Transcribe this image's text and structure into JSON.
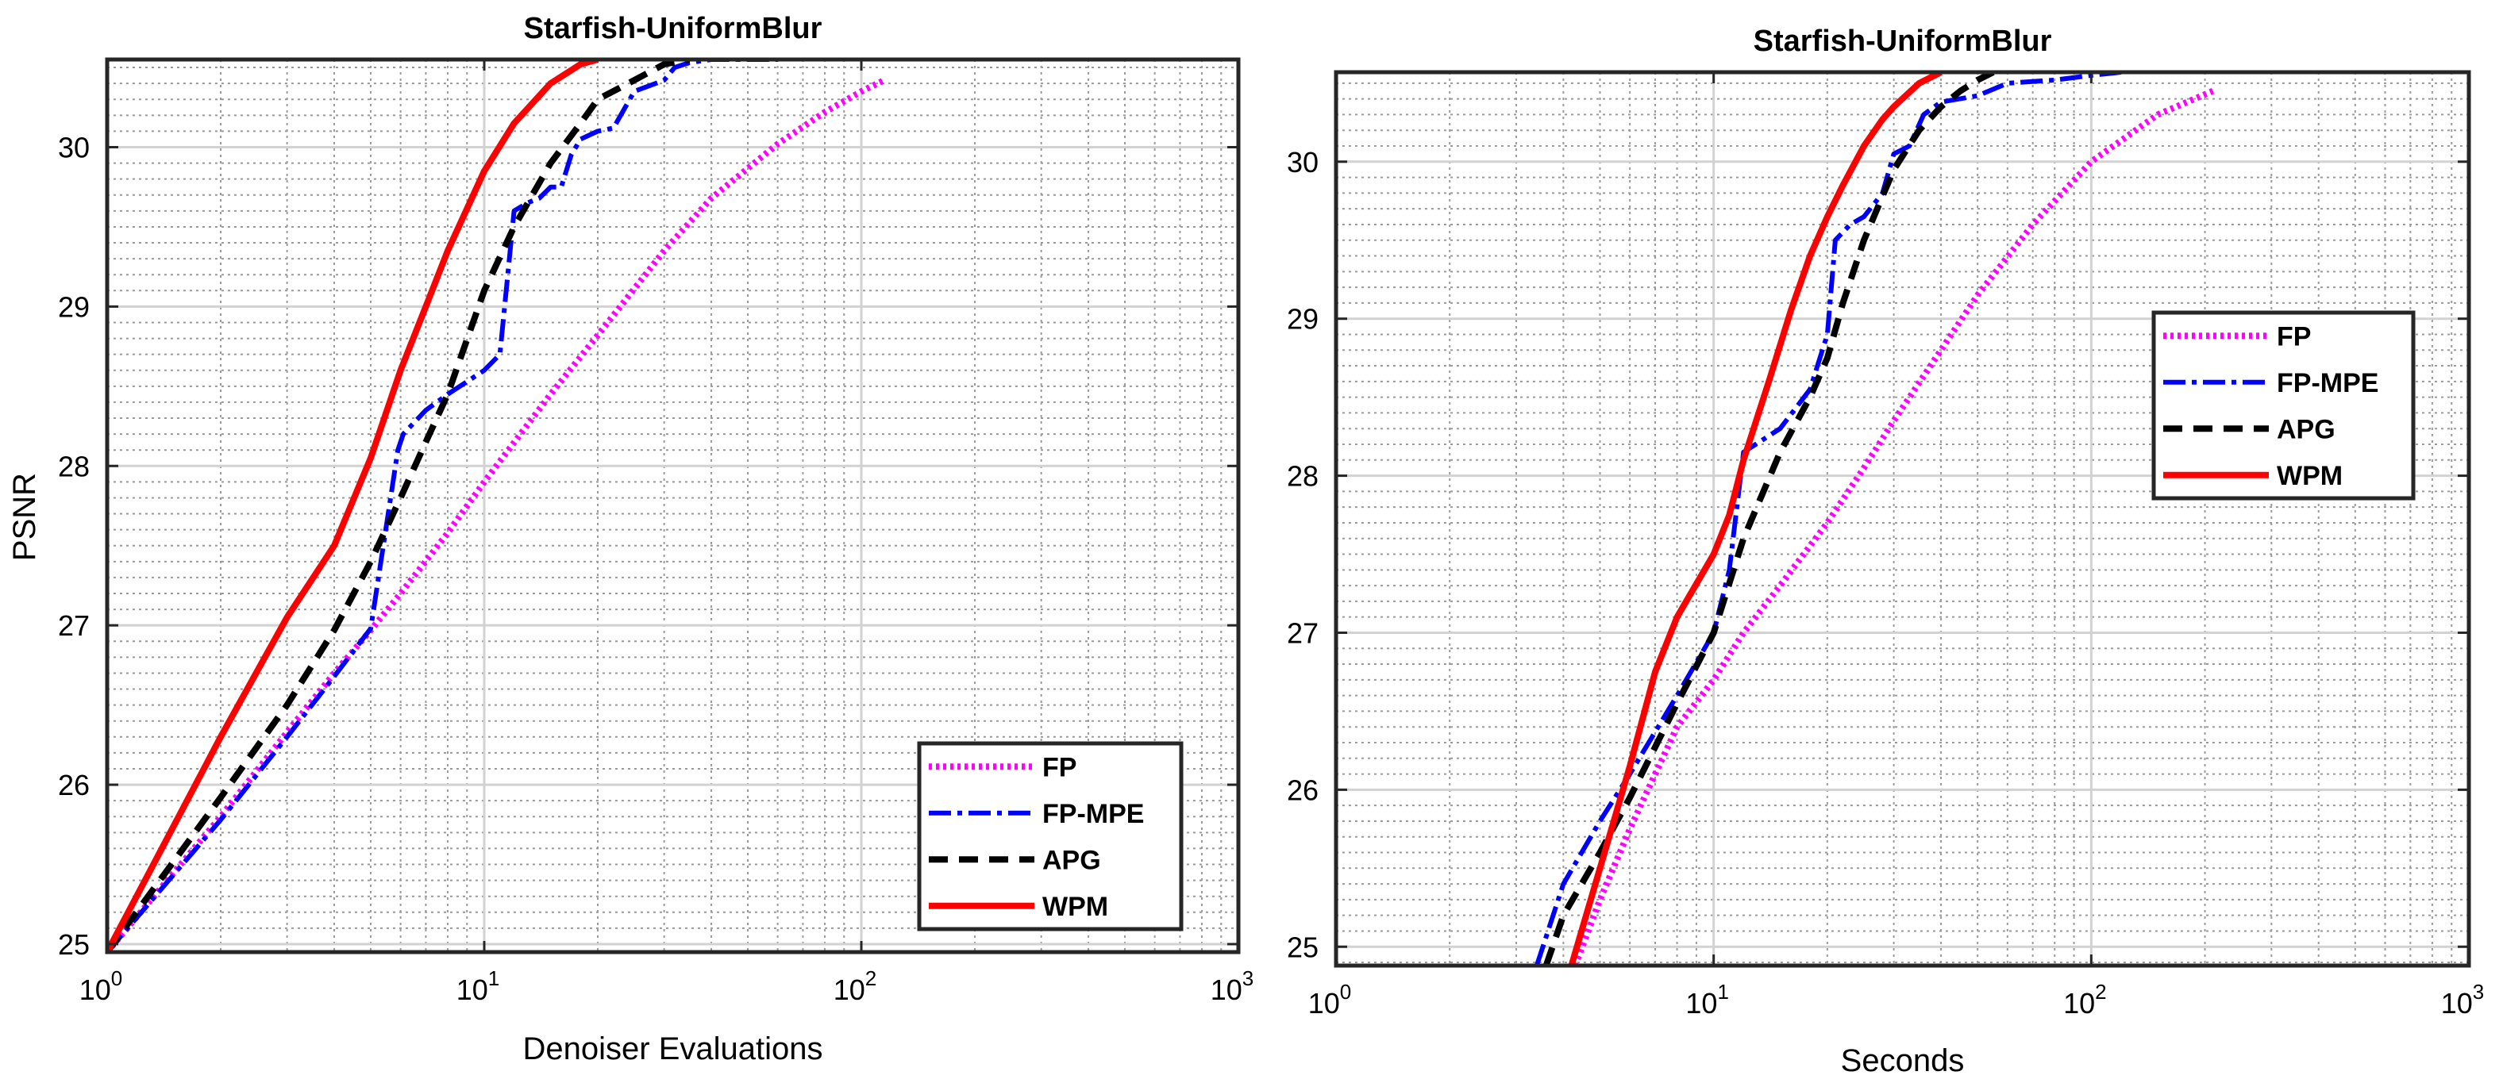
{
  "chart_data": [
    {
      "type": "line",
      "title": "Starfish-UniformBlur",
      "xlabel": "Denoiser Evaluations",
      "ylabel": "PSNR",
      "xscale": "log",
      "xlim": [
        1,
        1000
      ],
      "ylim": [
        24.95,
        30.55
      ],
      "x_ticks": [
        1,
        10,
        100,
        1000
      ],
      "x_tick_base": "10",
      "x_tick_exponents": [
        "0",
        "1",
        "2",
        "3"
      ],
      "y_ticks": [
        "25",
        "26",
        "27",
        "28",
        "29",
        "30"
      ],
      "grid": true,
      "minor_grid": true,
      "legend_position": "bottom-right",
      "series": [
        {
          "name": "FP",
          "color": "#ff00ff",
          "style": "dotted",
          "x": [
            1,
            2,
            3,
            4,
            5,
            6,
            8,
            10,
            15,
            20,
            30,
            40,
            60,
            80,
            100,
            115
          ],
          "y": [
            24.95,
            25.8,
            26.33,
            26.7,
            26.97,
            27.2,
            27.58,
            27.9,
            28.45,
            28.82,
            29.35,
            29.68,
            30.02,
            30.22,
            30.35,
            30.42
          ]
        },
        {
          "name": "FP-MPE",
          "color": "#0000ff",
          "style": "dashdot",
          "x": [
            1,
            2,
            3,
            4,
            5,
            5.9,
            6.1,
            7,
            8,
            10,
            11,
            12,
            13,
            14,
            15,
            16,
            17,
            18,
            20,
            22,
            25,
            30,
            32,
            35,
            40,
            45,
            50,
            60
          ],
          "y": [
            24.95,
            25.78,
            26.3,
            26.68,
            26.98,
            28.1,
            28.2,
            28.35,
            28.45,
            28.6,
            28.7,
            29.6,
            29.65,
            29.68,
            29.75,
            29.75,
            29.95,
            30.05,
            30.1,
            30.12,
            30.35,
            30.42,
            30.5,
            30.53,
            30.55,
            30.55,
            30.55,
            30.55
          ]
        },
        {
          "name": "APG",
          "color": "#000000",
          "style": "dashed",
          "x": [
            1,
            2,
            3,
            4,
            5,
            6,
            7,
            8,
            10,
            12,
            15,
            18,
            20,
            25,
            30,
            35
          ],
          "y": [
            24.95,
            25.92,
            26.5,
            26.97,
            27.4,
            27.8,
            28.15,
            28.45,
            29.1,
            29.5,
            29.9,
            30.15,
            30.3,
            30.42,
            30.52,
            30.55
          ]
        },
        {
          "name": "WPM",
          "color": "#ff0000",
          "style": "solid",
          "x": [
            1,
            2,
            3,
            4,
            5,
            6,
            7,
            8,
            10,
            12,
            15,
            18,
            20
          ],
          "y": [
            24.95,
            26.3,
            27.05,
            27.5,
            28.05,
            28.6,
            29.0,
            29.35,
            29.85,
            30.15,
            30.4,
            30.52,
            30.55
          ]
        }
      ]
    },
    {
      "type": "line",
      "title": "Starfish-UniformBlur",
      "xlabel": "Seconds",
      "ylabel": "",
      "xscale": "log",
      "xlim": [
        1,
        1000
      ],
      "ylim": [
        24.88,
        30.57
      ],
      "x_ticks": [
        1,
        10,
        100,
        1000
      ],
      "x_tick_base": "10",
      "x_tick_exponents": [
        "0",
        "1",
        "2",
        "3"
      ],
      "y_ticks": [
        "25",
        "26",
        "27",
        "28",
        "29",
        "30"
      ],
      "grid": true,
      "minor_grid": true,
      "legend_position": "top-right",
      "series": [
        {
          "name": "FP",
          "color": "#ff00ff",
          "style": "dotted",
          "x": [
            4.3,
            5,
            6,
            7,
            8,
            10,
            12,
            15,
            20,
            25,
            30,
            40,
            50,
            70,
            100,
            150,
            210
          ],
          "y": [
            24.88,
            25.3,
            25.75,
            26.1,
            26.4,
            26.7,
            27.0,
            27.3,
            27.7,
            28.05,
            28.35,
            28.8,
            29.15,
            29.6,
            30.0,
            30.3,
            30.45
          ]
        },
        {
          "name": "FP-MPE",
          "color": "#0000ff",
          "style": "dashdot",
          "x": [
            3.4,
            4,
            5,
            6,
            8,
            10,
            11,
            12,
            15,
            18,
            20,
            21,
            23,
            25,
            28,
            30,
            33,
            36,
            40,
            50,
            60,
            80,
            100,
            120
          ],
          "y": [
            24.88,
            25.4,
            25.8,
            26.1,
            26.6,
            27.0,
            27.4,
            28.15,
            28.3,
            28.55,
            28.9,
            29.5,
            29.6,
            29.65,
            29.8,
            30.05,
            30.1,
            30.3,
            30.38,
            30.42,
            30.5,
            30.52,
            30.55,
            30.57
          ]
        },
        {
          "name": "APG",
          "color": "#000000",
          "style": "dashed",
          "x": [
            3.6,
            4,
            5,
            6,
            8,
            10,
            12,
            15,
            18,
            20,
            22,
            25,
            30,
            35,
            40,
            45,
            50,
            55
          ],
          "y": [
            24.88,
            25.2,
            25.6,
            25.95,
            26.55,
            27.0,
            27.6,
            28.15,
            28.5,
            28.75,
            29.1,
            29.5,
            29.95,
            30.2,
            30.35,
            30.45,
            30.52,
            30.57
          ]
        },
        {
          "name": "WPM",
          "color": "#ff0000",
          "style": "solid",
          "x": [
            4.2,
            5,
            6,
            7,
            8,
            10,
            11,
            12,
            14,
            16,
            18,
            20,
            22,
            25,
            28,
            30,
            35,
            40
          ],
          "y": [
            24.88,
            25.5,
            26.15,
            26.75,
            27.1,
            27.5,
            27.75,
            28.1,
            28.6,
            29.05,
            29.4,
            29.65,
            29.85,
            30.1,
            30.27,
            30.35,
            30.5,
            30.57
          ]
        }
      ]
    }
  ]
}
